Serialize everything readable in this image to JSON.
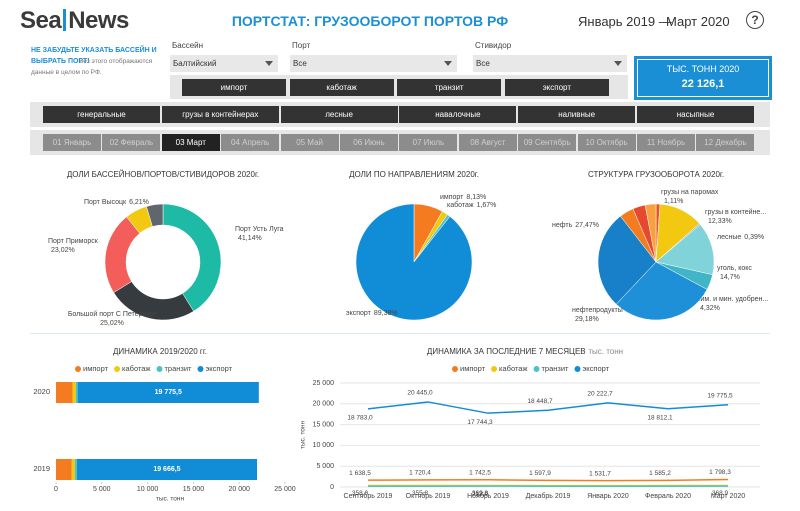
{
  "header": {
    "logo": [
      "Sea",
      "News"
    ],
    "title": "ПОРТСТАТ: ГРУЗООБОРОТ ПОРТОВ РФ",
    "period_from": "Январь 2019 —",
    "period_to": "Март 2020",
    "help": "?"
  },
  "notice": {
    "title": "НЕ ЗАБУДЬТЕ УКАЗАТЬ БАССЕЙН И ВЫБРАТЬ ПОРТ!",
    "text": "Без этого отображаются данные в целом по РФ."
  },
  "filters": [
    {
      "label": "Бассейн",
      "value": "Балтийский"
    },
    {
      "label": "Порт",
      "value": "Все"
    },
    {
      "label": "Стивидор",
      "value": "Все"
    }
  ],
  "directions": [
    "импорт",
    "каботаж",
    "транзит",
    "экспорт"
  ],
  "kpi": {
    "label": "ТЫС. ТОНН 2020",
    "value": "22 126,1"
  },
  "cargo_types": [
    "генеральные",
    "грузы в контейнерах",
    "лесные",
    "навалочные",
    "наливные",
    "насыпные"
  ],
  "months": {
    "items": [
      "01 Январь",
      "02 Февраль",
      "03 Март",
      "04 Апрель",
      "05 Май",
      "06 Июнь",
      "07 Июль",
      "08 Август",
      "09 Сентябрь",
      "10 Октябрь",
      "11 Ноябрь",
      "12 Декабрь"
    ],
    "selected": "03 Март"
  },
  "chart_data": [
    {
      "type": "donut",
      "title": "ДОЛИ БАССЕЙНОВ/ПОРТОВ/СТИВИДОРОВ 2020г.",
      "categories": [
        "Порт Усть Луга",
        "Большой порт С Петербург",
        "Порт Приморск",
        "Порт Высоцк",
        null
      ],
      "values": [
        41.14,
        25.02,
        23.02,
        6.21,
        4.61
      ],
      "value_labels": [
        "41,14%",
        "25,02%",
        "23,02%",
        "6,21%",
        null
      ],
      "colors": [
        "#1dbba5",
        "#363b40",
        "#f35e5a",
        "#f2c811",
        "#5f676c"
      ]
    },
    {
      "type": "pie",
      "title": "ДОЛИ ПО НАПРАВЛЕНИЯМ 2020г.",
      "categories": [
        "импорт",
        "каботаж",
        null,
        "экспорт"
      ],
      "values": [
        8.13,
        1.67,
        0.82,
        89.38
      ],
      "value_labels": [
        "8,13%",
        "1,67%",
        null,
        "89,38%"
      ],
      "colors": [
        "#f47b20",
        "#f2c811",
        "#4dc3c8",
        "#118dd8"
      ]
    },
    {
      "type": "pie",
      "title": "СТРУКТУРА ГРУЗООБОРОТА 2020г.",
      "categories": [
        "грузы на паромах",
        "грузы в контейне...",
        "лесные",
        "уголь, кокс",
        "хим. и мин. удобрен...",
        "нефтепродукты",
        "нефть",
        null,
        null,
        null
      ],
      "values": [
        1.11,
        12.33,
        0.39,
        14.7,
        4.32,
        29.18,
        27.47,
        4,
        3.5,
        3
      ],
      "value_labels": [
        "1,11%",
        "12,33%",
        "0,39%",
        "14,7%",
        "4,32%",
        "29,18%",
        "27,47%",
        null,
        null,
        null
      ],
      "colors": [
        "#e8552b",
        "#f2c811",
        "#b0b0b0",
        "#7fd3d9",
        "#3fb5c6",
        "#1e90d8",
        "#1780c8",
        "#f47b20",
        "#e64a2e",
        "#f9a03f"
      ]
    },
    {
      "type": "stacked_barh",
      "title": "ДИНАМИКА 2019/2020 гг.",
      "xlabel": "тыс. тонн",
      "categories": [
        "2020",
        "2019"
      ],
      "series": [
        {
          "name": "импорт",
          "color": "#f47b20",
          "values": [
            1798.3,
            1720
          ]
        },
        {
          "name": "каботаж",
          "color": "#f2c811",
          "values": [
            368.9,
            350
          ]
        },
        {
          "name": "транзит",
          "color": "#4dc3c8",
          "values": [
            200,
            210
          ]
        },
        {
          "name": "экспорт",
          "color": "#118dd8",
          "values": [
            19775.5,
            19666.5
          ],
          "value_labels": [
            "19 775,5",
            "19 666,5"
          ]
        }
      ],
      "xlim": [
        0,
        25000
      ],
      "xticks": [
        0,
        {
          "value": 5000,
          "label": "5 000"
        },
        {
          "value": 10000,
          "label": "10 000"
        },
        {
          "value": 15000,
          "label": "15 000"
        },
        {
          "value": 20000,
          "label": "20 000"
        },
        {
          "value": 25000,
          "label": "25 000"
        }
      ]
    },
    {
      "type": "line",
      "title": "ДИНАМИКА ЗА ПОСЛЕДНИЕ 7 МЕСЯЦЕВ",
      "subtitle": "тыс. тонн",
      "ylabel": "тыс. тонн",
      "categories": [
        "Сентябрь 2019",
        "Октябрь 2019",
        "Ноябрь 2019",
        "Декабрь 2019",
        "Январь 2020",
        "Февраль 2020",
        "Март 2020"
      ],
      "series": [
        {
          "name": "импорт",
          "color": "#f47b20",
          "values": [
            1638.5,
            1720.4,
            1742.5,
            1597.9,
            1531.7,
            1585.2,
            1798.3
          ],
          "value_labels": [
            "1 638,5",
            "1 720,4",
            "1 742,5",
            "1 597,9",
            "1 531,7",
            "1 585,2",
            "1 798,3"
          ]
        },
        {
          "name": "каботаж",
          "color": "#f2c811",
          "values": [
            358.0,
            355.8,
            369.8,
            340,
            330,
            350,
            368.9
          ],
          "value_labels": [
            "358,0",
            "355,8",
            "369,8",
            null,
            null,
            null,
            "368,9"
          ]
        },
        {
          "name": "транзит",
          "color": "#4dc3c8",
          "values": [
            190,
            195,
            212.9,
            190,
            185,
            195,
            200
          ],
          "value_labels": [
            null,
            null,
            "212,9",
            null,
            null,
            null,
            null
          ]
        },
        {
          "name": "экспорт",
          "color": "#118dd8",
          "values": [
            18783.0,
            20445.0,
            17744.3,
            18448.7,
            20222.7,
            18812.1,
            19775.5
          ],
          "value_labels": [
            "18 783,0",
            "20 445,0",
            "17 744,3",
            "18 448,7",
            "20 222,7",
            "18 812,1",
            "19 775,5"
          ]
        }
      ],
      "ylim": [
        0,
        25000
      ],
      "yticks": [
        0,
        {
          "value": 5000,
          "label": "5 000"
        },
        {
          "value": 10000,
          "label": "10 000"
        },
        {
          "value": 15000,
          "label": "15 000"
        },
        {
          "value": 20000,
          "label": "20 000"
        },
        {
          "value": 25000,
          "label": "25 000"
        }
      ],
      "grid": true
    }
  ]
}
